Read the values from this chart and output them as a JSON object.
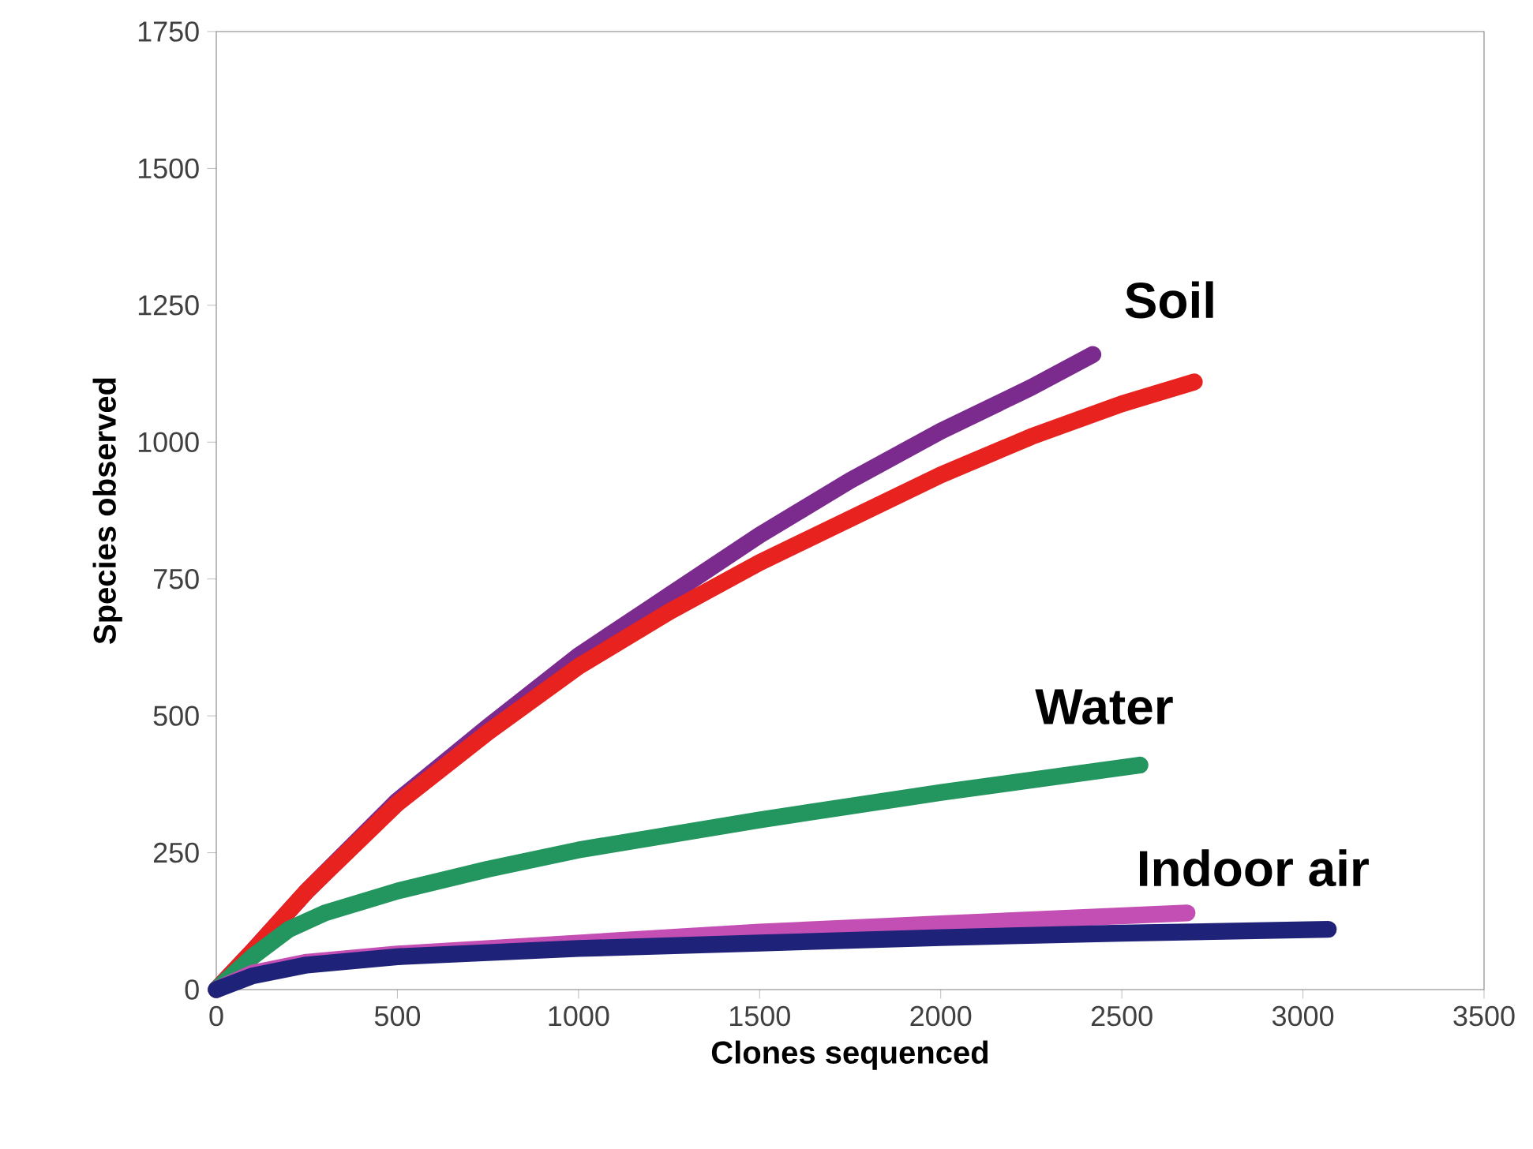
{
  "chart_data": {
    "type": "line",
    "xlabel": "Clones sequenced",
    "ylabel": "Species observed",
    "xlim": [
      0,
      3500
    ],
    "xticks": [
      0,
      500,
      1000,
      1500,
      2000,
      2500,
      3000,
      3500
    ],
    "ylim": [
      0,
      1750
    ],
    "yticks": [
      0,
      250,
      500,
      750,
      1000,
      1250,
      1500,
      1750
    ],
    "marker": "none",
    "line_style": "solid",
    "series": [
      {
        "color": "#7b2a8e",
        "x": [
          0,
          100,
          250,
          500,
          750,
          1000,
          1250,
          1500,
          1750,
          2000,
          2250,
          2420
        ],
        "values": [
          0,
          70,
          180,
          345,
          480,
          610,
          720,
          830,
          930,
          1020,
          1100,
          1160
        ]
      },
      {
        "color": "#e8221f",
        "x": [
          0,
          100,
          250,
          500,
          750,
          1000,
          1250,
          1500,
          1750,
          2000,
          2250,
          2500,
          2700
        ],
        "values": [
          0,
          70,
          180,
          340,
          470,
          590,
          690,
          780,
          860,
          940,
          1010,
          1070,
          1110
        ]
      },
      {
        "color": "#23955e",
        "x": [
          0,
          100,
          200,
          300,
          500,
          750,
          1000,
          1500,
          2000,
          2550
        ],
        "values": [
          0,
          60,
          110,
          140,
          180,
          220,
          255,
          310,
          360,
          410
        ]
      },
      {
        "color": "#c44fb4",
        "x": [
          0,
          100,
          250,
          500,
          1000,
          1500,
          2000,
          2680
        ],
        "values": [
          0,
          30,
          50,
          65,
          85,
          105,
          120,
          140
        ]
      },
      {
        "color": "#1f2279",
        "x": [
          0,
          100,
          250,
          500,
          1000,
          1500,
          2000,
          2500,
          3070
        ],
        "values": [
          0,
          25,
          45,
          60,
          75,
          85,
          95,
          103,
          110
        ]
      }
    ],
    "annotations": [
      "Soil",
      "Water",
      "Indoor air"
    ]
  }
}
